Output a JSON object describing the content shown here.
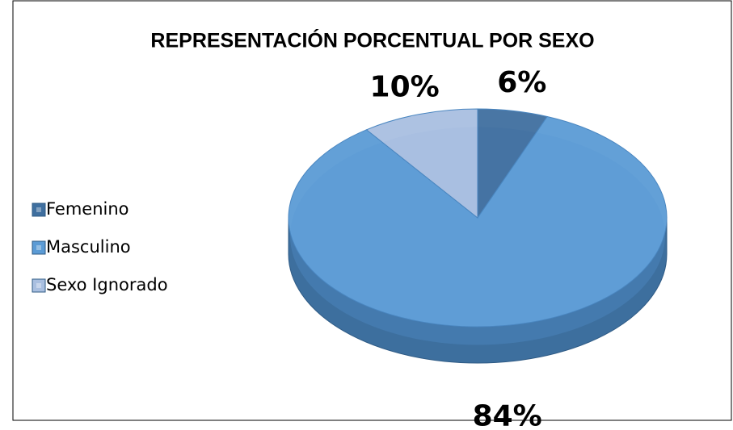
{
  "chart_data": {
    "type": "pie",
    "title": "REPRESENTACIÓN PORCENTUAL POR SEXO",
    "categories": [
      "Femenino",
      "Masculino",
      "Sexo Ignorado"
    ],
    "values": [
      6,
      84,
      10
    ],
    "value_labels": [
      "6%",
      "84%",
      "10%"
    ],
    "colors": [
      "#3f6f9f",
      "#5b9bd5",
      "#a9bfe0"
    ],
    "legend": "left"
  }
}
